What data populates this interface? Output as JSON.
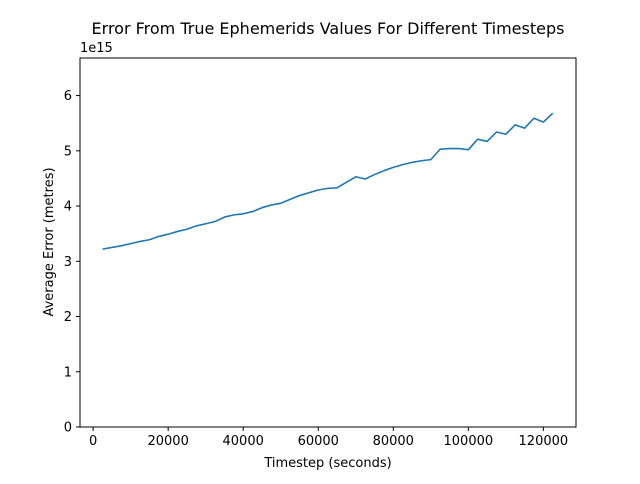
{
  "chart_data": {
    "type": "line",
    "title": "Error From True Ephemerids Values For Different Timesteps",
    "xlabel": "Timestep (seconds)",
    "ylabel": "Average Error (metres)",
    "y_offset_label": "1e15",
    "y_multiplier": 1000000000000000.0,
    "xlim": [
      -3500,
      128700
    ],
    "ylim": [
      0,
      6.68
    ],
    "xticks": [
      0,
      20000,
      40000,
      60000,
      80000,
      100000,
      120000
    ],
    "xtick_labels": [
      "0",
      "20000",
      "40000",
      "60000",
      "80000",
      "100000",
      "120000"
    ],
    "yticks": [
      0,
      1,
      2,
      3,
      4,
      5,
      6
    ],
    "ytick_labels": [
      "0",
      "1",
      "2",
      "3",
      "4",
      "5",
      "6"
    ],
    "grid": false,
    "legend": "none",
    "series": [
      {
        "color": "#1f77b4",
        "x": [
          2500,
          5000,
          7500,
          10000,
          12500,
          15000,
          17500,
          20000,
          22500,
          25000,
          27500,
          30000,
          32500,
          35000,
          37500,
          40000,
          42500,
          45000,
          47500,
          50000,
          52500,
          55000,
          57500,
          60000,
          62500,
          65000,
          67500,
          70000,
          72500,
          75000,
          77500,
          80000,
          82500,
          85000,
          87500,
          90000,
          92500,
          95000,
          97500,
          100000,
          102500,
          105000,
          107500,
          110000,
          112500,
          115000,
          117500,
          120000,
          122500
        ],
        "y": [
          3.22,
          3.25,
          3.28,
          3.32,
          3.36,
          3.39,
          3.45,
          3.49,
          3.54,
          3.58,
          3.64,
          3.68,
          3.72,
          3.8,
          3.84,
          3.86,
          3.9,
          3.97,
          4.02,
          4.05,
          4.12,
          4.19,
          4.24,
          4.29,
          4.32,
          4.33,
          4.43,
          4.53,
          4.49,
          4.57,
          4.64,
          4.7,
          4.75,
          4.79,
          4.82,
          4.84,
          5.03,
          5.04,
          5.04,
          5.02,
          5.21,
          5.17,
          5.34,
          5.3,
          5.47,
          5.41,
          5.59,
          5.52,
          5.68
        ]
      }
    ]
  }
}
